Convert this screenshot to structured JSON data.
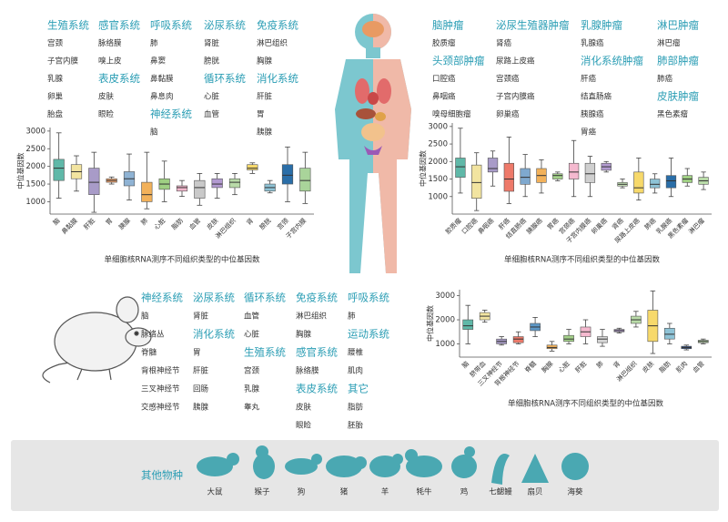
{
  "human_normal": {
    "columns": [
      [
        {
          "title": "生殖系统",
          "items": [
            "宫颈",
            "子宫内膜",
            "乳腺",
            "卵巢",
            "胎盘"
          ]
        }
      ],
      [
        {
          "title": "感官系统",
          "items": [
            "脉络膜",
            "嗅上皮"
          ]
        },
        {
          "title": "表皮系统",
          "items": [
            "皮肤",
            "眼睑"
          ]
        }
      ],
      [
        {
          "title": "呼吸系统",
          "items": [
            "肺",
            "鼻窦",
            "鼻黏膜",
            "鼻息肉"
          ]
        },
        {
          "title": "神经系统",
          "items": [
            "脑"
          ]
        }
      ],
      [
        {
          "title": "泌尿系统",
          "items": [
            "肾脏",
            "膀胱"
          ]
        },
        {
          "title": "循环系统",
          "items": [
            "心脏",
            "血管"
          ]
        }
      ],
      [
        {
          "title": "免疫系统",
          "items": [
            "淋巴组织",
            "胸腺"
          ]
        },
        {
          "title": "消化系统",
          "items": [
            "肝脏",
            "胃",
            "胰腺"
          ]
        }
      ]
    ]
  },
  "human_tumor": {
    "columns": [
      [
        {
          "title": "脑肿瘤",
          "items": [
            "胶质瘤"
          ]
        },
        {
          "title": "头颈部肿瘤",
          "items": [
            "口腔癌",
            "鼻咽癌",
            "嗅母细胞瘤"
          ]
        }
      ],
      [
        {
          "title": "泌尿生殖器肿瘤",
          "items": [
            "肾癌",
            "尿路上皮癌",
            "宫颈癌",
            "子宫内膜癌",
            "卵巢癌"
          ]
        }
      ],
      [
        {
          "title": "乳腺肿瘤",
          "items": [
            "乳腺癌"
          ]
        },
        {
          "title": "消化系统肿瘤",
          "items": [
            "肝癌",
            "结直肠癌",
            "胰腺癌",
            "胃癌"
          ]
        }
      ],
      [
        {
          "title": "淋巴肿瘤",
          "items": [
            "淋巴瘤"
          ]
        },
        {
          "title": "肺部肿瘤",
          "items": [
            "肺癌"
          ]
        },
        {
          "title": "皮肤肿瘤",
          "items": [
            "黑色素瘤"
          ]
        }
      ]
    ]
  },
  "mouse": {
    "columns": [
      [
        {
          "title": "神经系统",
          "items": [
            "脑",
            "脉络丛",
            "脊髓",
            "背根神经节",
            "三叉神经节",
            "交感神经节"
          ]
        }
      ],
      [
        {
          "title": "泌尿系统",
          "items": [
            "肾脏"
          ]
        },
        {
          "title": "消化系统",
          "items": [
            "胃",
            "肝脏",
            "回肠",
            "胰腺"
          ]
        }
      ],
      [
        {
          "title": "循环系统",
          "items": [
            "血管",
            "心脏"
          ]
        },
        {
          "title": "生殖系统",
          "items": [
            "宫颈",
            "乳腺",
            "睾丸"
          ]
        }
      ],
      [
        {
          "title": "免疫系统",
          "items": [
            "淋巴组织",
            "胸腺"
          ]
        },
        {
          "title": "感官系统",
          "items": [
            "脉络膜"
          ]
        },
        {
          "title": "表皮系统",
          "items": [
            "皮肤",
            "眼睑"
          ]
        }
      ],
      [
        {
          "title": "呼吸系统",
          "items": [
            "肺"
          ]
        },
        {
          "title": "运动系统",
          "items": [
            "腰椎",
            "肌肉"
          ]
        },
        {
          "title": "其它",
          "items": [
            "脂肪",
            "胚胎"
          ]
        }
      ]
    ]
  },
  "other_species": {
    "title": "其他物种",
    "items": [
      "大鼠",
      "猴子",
      "狗",
      "猪",
      "羊",
      "牦牛",
      "鸡",
      "七鳃鳗",
      "扇贝",
      "海葵"
    ]
  },
  "chart_data": [
    {
      "type": "box",
      "ylabel": "中位基因数",
      "xlabel": "单细胞核RNA测序不同组织类型的中位基因数",
      "categories": [
        "脑",
        "鼻黏膜",
        "肝脏",
        "胃",
        "胰腺",
        "肺",
        "心脏",
        "脂肪",
        "血管",
        "皮肤",
        "淋巴组织",
        "肾",
        "膀胱",
        "宫颈",
        "子宫内膜"
      ],
      "stats": [
        [
          1100,
          1600,
          1950,
          2200,
          2950
        ],
        [
          1300,
          1650,
          1850,
          2050,
          2300
        ],
        [
          700,
          1200,
          1550,
          1950,
          2400
        ],
        [
          1500,
          1550,
          1600,
          1650,
          1700
        ],
        [
          1050,
          1450,
          1650,
          1850,
          2350
        ],
        [
          800,
          1000,
          1200,
          1550,
          2400
        ],
        [
          1000,
          1350,
          1500,
          1650,
          2150
        ],
        [
          1150,
          1300,
          1400,
          1450,
          1600
        ],
        [
          900,
          1100,
          1400,
          1600,
          1800
        ],
        [
          1100,
          1400,
          1500,
          1650,
          1800
        ],
        [
          1200,
          1400,
          1550,
          1650,
          1800
        ],
        [
          1800,
          1900,
          1950,
          2050,
          2100
        ],
        [
          1250,
          1300,
          1400,
          1500,
          1600
        ],
        [
          1000,
          1500,
          1750,
          2050,
          2550
        ],
        [
          950,
          1300,
          1600,
          1950,
          2400
        ]
      ],
      "colors": [
        "#5fb8a8",
        "#f2e4a0",
        "#a89bc8",
        "#f0a36d",
        "#8fb3d4",
        "#f2b15a",
        "#9fcf83",
        "#f2b6cc",
        "#c9c9c9",
        "#b29ad0",
        "#b9dba8",
        "#f7d96b",
        "#8ec3d6",
        "#2a6ea8",
        "#a9d49a"
      ],
      "ylim": [
        650,
        3100
      ],
      "yticks": [
        1000,
        1500,
        2000,
        2500,
        3000
      ]
    },
    {
      "type": "box",
      "ylabel": "中位基因数",
      "xlabel": "单细胞核RNA测序不同组织类型的中位基因数",
      "categories": [
        "胶质瘤",
        "口腔癌",
        "鼻咽癌",
        "肝癌",
        "结直肠癌",
        "胰腺癌",
        "胃癌",
        "宫颈癌",
        "子宫内膜癌",
        "卵巢癌",
        "肾癌",
        "尿路上皮癌",
        "肺癌",
        "乳腺癌",
        "黑色素瘤",
        "淋巴瘤"
      ],
      "stats": [
        [
          1100,
          1550,
          1850,
          2100,
          2950
        ],
        [
          600,
          950,
          1400,
          1900,
          2250
        ],
        [
          1300,
          1700,
          1800,
          2100,
          2300
        ],
        [
          800,
          1150,
          1500,
          1950,
          2700
        ],
        [
          1000,
          1350,
          1550,
          1800,
          2200
        ],
        [
          1100,
          1400,
          1600,
          1800,
          2050
        ],
        [
          1450,
          1500,
          1600,
          1650,
          1700
        ],
        [
          1000,
          1500,
          1700,
          1950,
          2600
        ],
        [
          1000,
          1400,
          1650,
          1950,
          2150
        ],
        [
          1700,
          1750,
          1850,
          1950,
          2000
        ],
        [
          1250,
          1300,
          1350,
          1400,
          1500
        ],
        [
          900,
          1100,
          1250,
          1700,
          2100
        ],
        [
          1100,
          1250,
          1350,
          1500,
          1650
        ],
        [
          1000,
          1250,
          1450,
          1600,
          2100
        ],
        [
          1300,
          1400,
          1500,
          1600,
          1800
        ],
        [
          1200,
          1350,
          1450,
          1550,
          1700
        ]
      ],
      "colors": [
        "#5fb8a8",
        "#f2e4a0",
        "#a89bc8",
        "#ee7a6a",
        "#7fa9cf",
        "#f2b15a",
        "#a4d18a",
        "#f5b9cf",
        "#cfcfcf",
        "#b29ad0",
        "#c5e3b5",
        "#f7d96b",
        "#8ec3d6",
        "#2a6ea8",
        "#9fcf83",
        "#b9dba8"
      ],
      "ylim": [
        500,
        3100
      ],
      "yticks": [
        1000,
        1500,
        2000,
        2500,
        3000
      ]
    },
    {
      "type": "box",
      "ylabel": "中位基因数",
      "xlabel": "单细胞核RNA测序不同组织类型的中位基因数",
      "categories": [
        "脑",
        "脐带血",
        "三叉神经节",
        "背根神经节",
        "脊髓",
        "胸腺",
        "心脏",
        "肝脏",
        "肺",
        "肾",
        "淋巴组织",
        "皮肤",
        "脂肪",
        "肌肉",
        "血管"
      ],
      "stats": [
        [
          1000,
          1600,
          1750,
          2000,
          2600
        ],
        [
          1900,
          2000,
          2150,
          2300,
          2400
        ],
        [
          950,
          1000,
          1100,
          1200,
          1300
        ],
        [
          1000,
          1050,
          1200,
          1300,
          1500
        ],
        [
          1300,
          1550,
          1700,
          1850,
          2100
        ],
        [
          700,
          800,
          850,
          950,
          1100
        ],
        [
          1000,
          1100,
          1200,
          1350,
          1600
        ],
        [
          1000,
          1300,
          1500,
          1700,
          2000
        ],
        [
          900,
          1050,
          1200,
          1300,
          1600
        ],
        [
          1450,
          1500,
          1550,
          1600,
          1650
        ],
        [
          1700,
          1850,
          2000,
          2150,
          2350
        ],
        [
          600,
          1100,
          1750,
          2400,
          3200
        ],
        [
          1000,
          1200,
          1400,
          1650,
          1850
        ],
        [
          750,
          800,
          850,
          900,
          950
        ],
        [
          1000,
          1050,
          1100,
          1150,
          1200
        ]
      ],
      "colors": [
        "#5fb8a8",
        "#f2e4a0",
        "#a89bc8",
        "#ee7a6a",
        "#5d97c6",
        "#f2b15a",
        "#a4d18a",
        "#f5b9cf",
        "#d5d5d5",
        "#b29ad0",
        "#b9dba8",
        "#f7d96b",
        "#8ec3d6",
        "#2a4f8a",
        "#b9dba8"
      ],
      "ylim": [
        450,
        3250
      ],
      "yticks": [
        1000,
        2000,
        3000
      ]
    }
  ]
}
